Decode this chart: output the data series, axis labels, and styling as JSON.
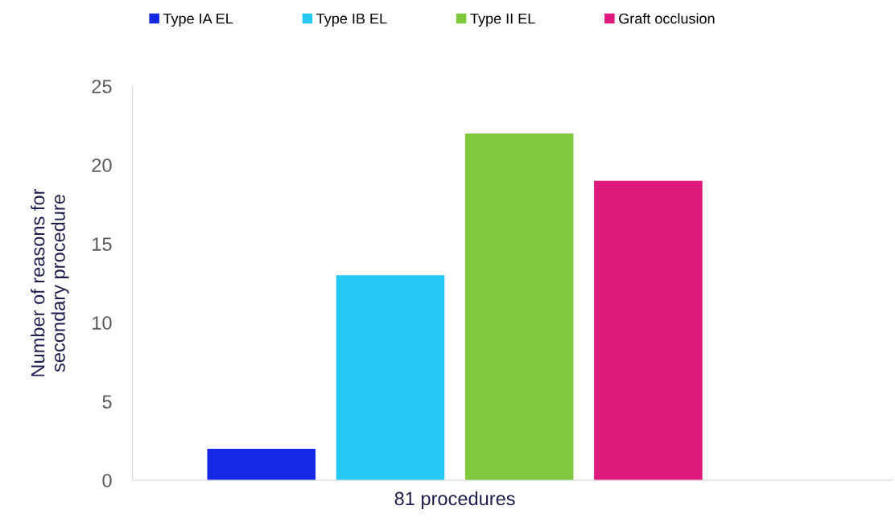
{
  "chart_data": {
    "type": "bar",
    "ylabel": "Number of reasons for\nsecondary procedure",
    "categories": [
      "81 procedures"
    ],
    "series": [
      {
        "name": "Type IA EL",
        "color": "#1428e6",
        "values": [
          2
        ]
      },
      {
        "name": "Type IB EL",
        "color": "#25c9f3",
        "values": [
          13
        ]
      },
      {
        "name": "Type II EL",
        "color": "#80c83c",
        "values": [
          22
        ]
      },
      {
        "name": "Graft occlusion",
        "color": "#e0197d",
        "values": [
          19
        ]
      }
    ],
    "ylim": [
      0,
      25
    ],
    "yticks": [
      0,
      5,
      10,
      15,
      20,
      25
    ],
    "grid": false,
    "legend": "top"
  }
}
